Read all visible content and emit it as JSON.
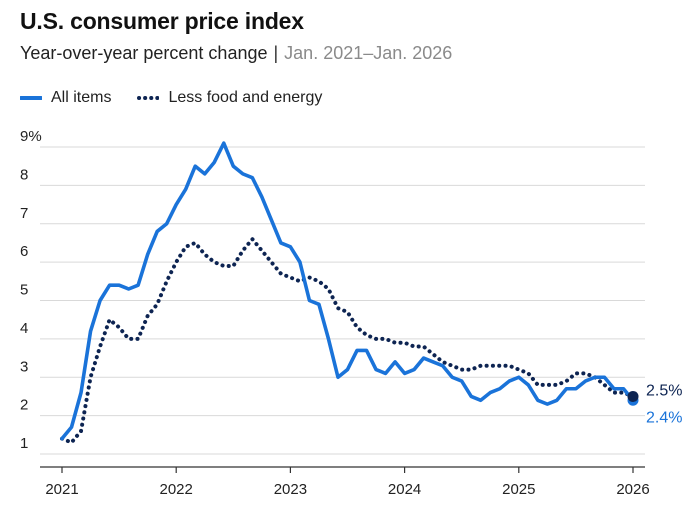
{
  "header": {
    "title": "U.S. consumer price index",
    "subtitle_main": "Year-over-year percent change",
    "subtitle_sep": "|",
    "subtitle_range": "Jan. 2021–Jan. 2026"
  },
  "legend": [
    {
      "label": "All items",
      "style": "solid"
    },
    {
      "label": "Less food and energy",
      "style": "dotted"
    }
  ],
  "colors": {
    "all_items": "#1a73d9",
    "core": "#0d2452",
    "grid": "#d9d9d9",
    "axis": "#333333"
  },
  "chart_data": {
    "type": "line",
    "title": "U.S. consumer price index",
    "subtitle": "Year-over-year percent change | Jan. 2021–Jan. 2026",
    "xlabel": "",
    "ylabel": "",
    "x_unit": "month index from Jan. 2021",
    "x_ticks": [
      {
        "value": 0,
        "label": "2021"
      },
      {
        "value": 12,
        "label": "2022"
      },
      {
        "value": 24,
        "label": "2023"
      },
      {
        "value": 36,
        "label": "2024"
      },
      {
        "value": 48,
        "label": "2025"
      },
      {
        "value": 60,
        "label": "2026"
      }
    ],
    "y_ticks": [
      {
        "value": 1,
        "label": "1"
      },
      {
        "value": 2,
        "label": "2"
      },
      {
        "value": 3,
        "label": "3"
      },
      {
        "value": 4,
        "label": "4"
      },
      {
        "value": 5,
        "label": "5"
      },
      {
        "value": 6,
        "label": "6"
      },
      {
        "value": 7,
        "label": "7"
      },
      {
        "value": 8,
        "label": "8"
      },
      {
        "value": 9,
        "label": "9%"
      }
    ],
    "xlim": [
      0,
      60
    ],
    "ylim": [
      1,
      9
    ],
    "grid": "horizontal",
    "legend_position": "top-left",
    "series": [
      {
        "name": "All items",
        "style": "solid",
        "values": [
          1.4,
          1.7,
          2.6,
          4.2,
          5.0,
          5.4,
          5.4,
          5.3,
          5.4,
          6.2,
          6.8,
          7.0,
          7.5,
          7.9,
          8.5,
          8.3,
          8.6,
          9.1,
          8.5,
          8.3,
          8.2,
          7.7,
          7.1,
          6.5,
          6.4,
          6.0,
          5.0,
          4.9,
          4.0,
          3.0,
          3.2,
          3.7,
          3.7,
          3.2,
          3.1,
          3.4,
          3.1,
          3.2,
          3.5,
          3.4,
          3.3,
          3.0,
          2.9,
          2.5,
          2.4,
          2.6,
          2.7,
          2.9,
          3.0,
          2.8,
          2.4,
          2.3,
          2.4,
          2.7,
          2.7,
          2.9,
          3.0,
          3.0,
          2.7,
          2.7,
          2.4
        ],
        "end_label": "2.4%"
      },
      {
        "name": "Less food and energy",
        "style": "dotted",
        "values": [
          1.4,
          1.3,
          1.6,
          3.0,
          3.8,
          4.5,
          4.3,
          4.0,
          4.0,
          4.6,
          4.9,
          5.5,
          6.0,
          6.4,
          6.5,
          6.2,
          6.0,
          5.9,
          5.9,
          6.3,
          6.6,
          6.3,
          6.0,
          5.7,
          5.6,
          5.5,
          5.6,
          5.5,
          5.3,
          4.8,
          4.7,
          4.3,
          4.1,
          4.0,
          4.0,
          3.9,
          3.9,
          3.8,
          3.8,
          3.6,
          3.4,
          3.3,
          3.2,
          3.2,
          3.3,
          3.3,
          3.3,
          3.3,
          3.2,
          3.1,
          2.8,
          2.8,
          2.8,
          2.9,
          3.1,
          3.1,
          3.0,
          2.8,
          2.6,
          2.6,
          2.5
        ],
        "end_label": "2.5%"
      }
    ]
  }
}
